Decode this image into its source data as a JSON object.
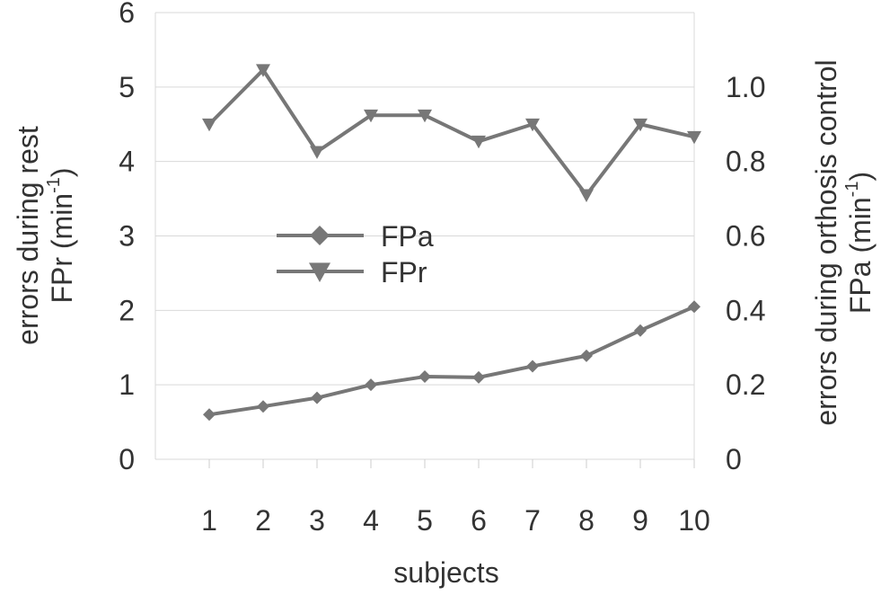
{
  "chart_data": {
    "type": "line",
    "x": [
      1,
      2,
      3,
      4,
      5,
      6,
      7,
      8,
      9,
      10
    ],
    "xlabel": "subjects",
    "ylabel_left_line1": "errors during rest",
    "ylabel_left_line2_prefix": "FPr (min",
    "ylabel_left_line2_sup": "-1",
    "ylabel_left_line2_suffix": ")",
    "ylabel_right_line1": "errors during orthosis control",
    "ylabel_right_line2_prefix": "FPa (min",
    "ylabel_right_line2_sup": "-1",
    "ylabel_right_line2_suffix": ")",
    "ylim_left": [
      0,
      6
    ],
    "ylim_right": [
      0,
      1.2
    ],
    "yticks_left": [
      "0",
      "1",
      "2",
      "3",
      "4",
      "5",
      "6"
    ],
    "yticks_right": [
      "0",
      "0.2",
      "0.4",
      "0.6",
      "0.8",
      "1.0"
    ],
    "grid": true,
    "legend_position": "center-left",
    "series_color": "#777777",
    "series": [
      {
        "name": "FPa",
        "axis": "right",
        "marker": "diamond",
        "values": [
          0.12,
          0.142,
          0.165,
          0.2,
          0.222,
          0.22,
          0.25,
          0.278,
          0.346,
          0.41
        ]
      },
      {
        "name": "FPr",
        "axis": "left",
        "marker": "triangle-down",
        "values": [
          4.5,
          5.23,
          4.13,
          4.62,
          4.62,
          4.27,
          4.5,
          3.55,
          4.5,
          4.33
        ]
      }
    ]
  }
}
